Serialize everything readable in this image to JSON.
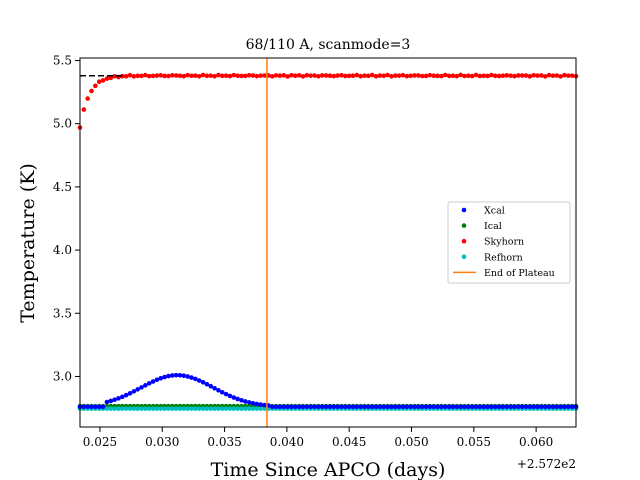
{
  "chart_data": {
    "type": "scatter",
    "title": "68/110 A, scanmode=3",
    "xlabel": "Time Since APCO (days)",
    "ylabel": "Temperature (K)",
    "x_offset_label": "+2.572e2",
    "xlim": [
      0.0234,
      0.0632
    ],
    "ylim": [
      2.6,
      5.52
    ],
    "x_ticks": [
      0.025,
      0.03,
      0.035,
      0.04,
      0.045,
      0.05,
      0.055,
      0.06
    ],
    "x_tick_labels": [
      "0.025",
      "0.030",
      "0.035",
      "0.040",
      "0.045",
      "0.050",
      "0.055",
      "0.060"
    ],
    "y_ticks": [
      3.0,
      3.5,
      4.0,
      4.5,
      5.0,
      5.5
    ],
    "y_tick_labels": [
      "3.0",
      "3.5",
      "4.0",
      "4.5",
      "5.0",
      "5.5"
    ],
    "grid": false,
    "legend_position": "center-right",
    "sampling": {
      "x_start": 0.0234,
      "x_end": 0.0632,
      "count": 130
    },
    "series": [
      {
        "name": "Xcal",
        "color": "#0000ff",
        "baseline": 2.76,
        "bump_peak": 3.01,
        "bump_center": 0.0312,
        "bump_sigma": 0.0029,
        "bump_start": 0.0254,
        "bump_end": 0.0386
      },
      {
        "name": "Ical",
        "color": "#008000",
        "value": 2.765
      },
      {
        "name": "Skyhorn",
        "color": "#ff0000",
        "start": 4.97,
        "plateau": 5.38,
        "rise_tau": 0.00075,
        "jitter": 0.006
      },
      {
        "name": "Refhorn",
        "color": "#00bfbf",
        "value": 2.745
      }
    ],
    "plateau_line": {
      "name": "End of Plateau",
      "color": "#ff7f0e",
      "x": 0.0384
    },
    "reference_line": {
      "style": "dashed",
      "color": "#000000",
      "y": 5.38,
      "x_start": 0.0234,
      "x_end": 0.027
    }
  }
}
